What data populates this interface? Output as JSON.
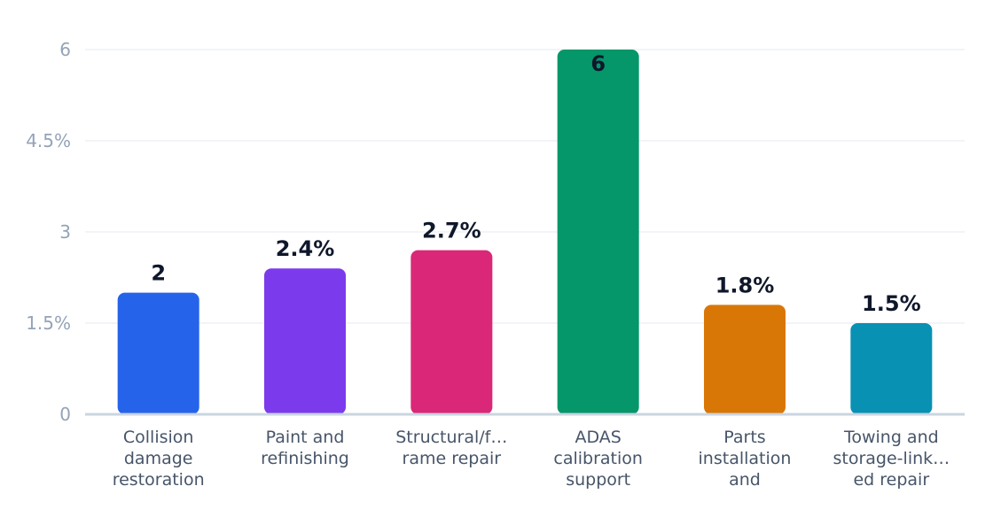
{
  "chart_data": {
    "type": "bar",
    "categories": [
      [
        "Collision",
        "damage",
        "restoration"
      ],
      [
        "Paint and",
        "refinishing"
      ],
      [
        "Structural/f…",
        "rame repair"
      ],
      [
        "ADAS",
        "calibration",
        "support"
      ],
      [
        "Parts",
        "installation",
        "and"
      ],
      [
        "Towing and",
        "storage-link…",
        "ed repair"
      ]
    ],
    "values": [
      2,
      2.4,
      2.7,
      6,
      1.8,
      1.5
    ],
    "data_labels": [
      "2",
      "2.4%",
      "2.7%",
      "6",
      "1.8%",
      "1.5%"
    ],
    "colors": [
      "#2563eb",
      "#7c3aed",
      "#db2777",
      "#059669",
      "#d97706",
      "#0891b2"
    ],
    "yticks": [
      0,
      1.5,
      3,
      4.5,
      6
    ],
    "ytick_labels": [
      "0",
      "1.5%",
      "3",
      "4.5%",
      "6"
    ],
    "ylim": [
      0,
      6
    ],
    "grid": true,
    "title": "",
    "xlabel": "",
    "ylabel": ""
  }
}
